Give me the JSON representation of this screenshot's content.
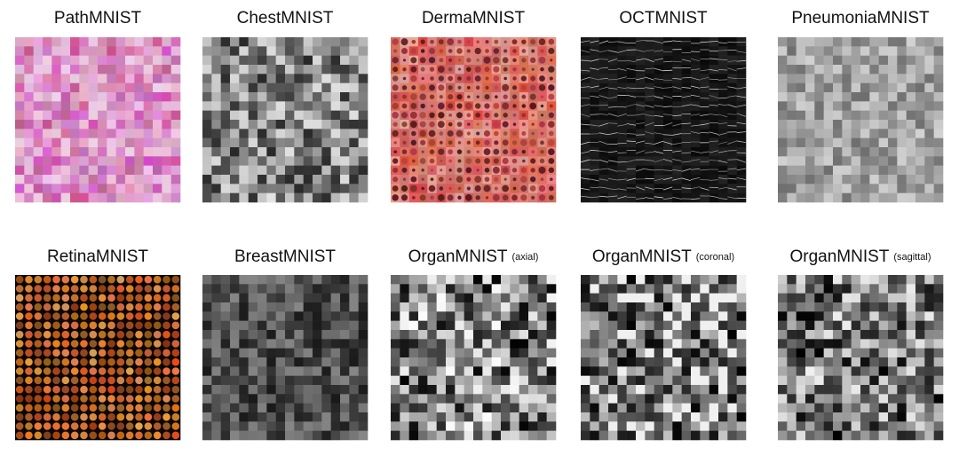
{
  "panels": [
    {
      "title": "PathMNIST"
    },
    {
      "title": "ChestMNIST"
    },
    {
      "title": "DermaMNIST"
    },
    {
      "title": "OCTMNIST"
    },
    {
      "title": "PneumoniaMNIST"
    },
    {
      "title": "RetinaMNIST"
    },
    {
      "title": "BreastMNIST"
    },
    {
      "title": "OrganMNIST",
      "view": "(axial)"
    },
    {
      "title": "OrganMNIST",
      "view": "(coronal)"
    },
    {
      "title": "OrganMNIST",
      "view": "(sagittal)"
    }
  ]
}
